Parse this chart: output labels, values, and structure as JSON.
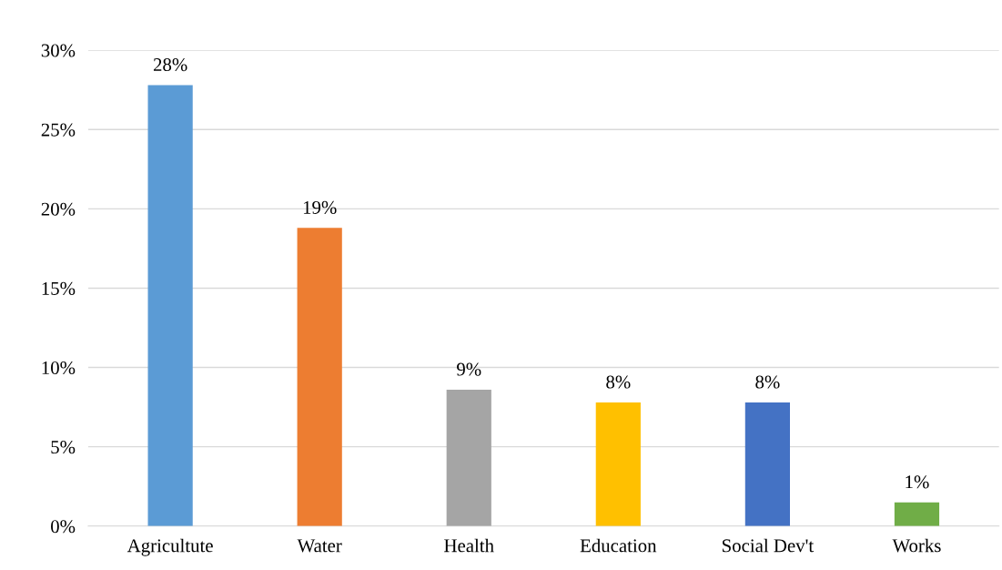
{
  "chart_data": {
    "type": "bar",
    "categories": [
      "Agricultute",
      "Water",
      "Health",
      "Education",
      "Social Dev't",
      "Works"
    ],
    "values": [
      27.8,
      18.8,
      8.6,
      7.8,
      7.8,
      1.5
    ],
    "value_labels": [
      "28%",
      "19%",
      "9%",
      "8%",
      "8%",
      "1%"
    ],
    "colors": [
      "#5b9bd5",
      "#ed7d31",
      "#a5a5a5",
      "#ffc000",
      "#4472c4",
      "#70ad47"
    ],
    "ylim": [
      0,
      30
    ],
    "yticks": [
      {
        "value": 0,
        "label": "0%"
      },
      {
        "value": 5,
        "label": "5%"
      },
      {
        "value": 10,
        "label": "10%"
      },
      {
        "value": 15,
        "label": "15%"
      },
      {
        "value": 20,
        "label": "20%"
      },
      {
        "value": 25,
        "label": "25%"
      },
      {
        "value": 30,
        "label": "30%"
      }
    ],
    "grid": "y"
  }
}
